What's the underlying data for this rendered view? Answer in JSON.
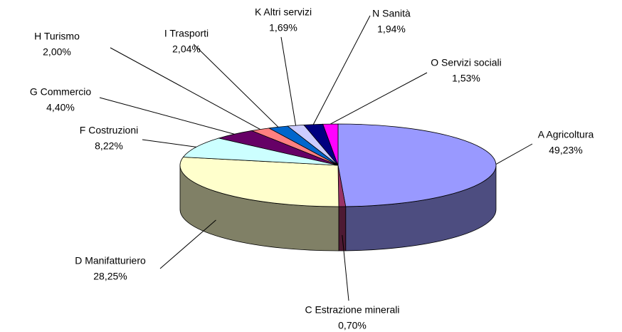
{
  "chart_data": {
    "type": "pie",
    "categories": [
      "A Agricoltura",
      "C Estrazione minerali",
      "D Manifatturiero",
      "F Costruzioni",
      "G Commercio",
      "H Turismo",
      "I Trasporti",
      "K Altri servizi",
      "N Sanità",
      "O Servizi sociali"
    ],
    "values": [
      49.23,
      0.7,
      28.25,
      8.22,
      4.4,
      2.0,
      2.04,
      1.69,
      1.94,
      1.53
    ],
    "value_labels": [
      "49,23%",
      "0,70%",
      "28,25%",
      "8,22%",
      "4,40%",
      "2,00%",
      "2,04%",
      "1,69%",
      "1,94%",
      "1,53%"
    ],
    "colors": [
      "#9999ff",
      "#993366",
      "#ffffcc",
      "#ccffff",
      "#660066",
      "#ff8080",
      "#0066cc",
      "#ccccff",
      "#000080",
      "#ff00ff"
    ]
  }
}
